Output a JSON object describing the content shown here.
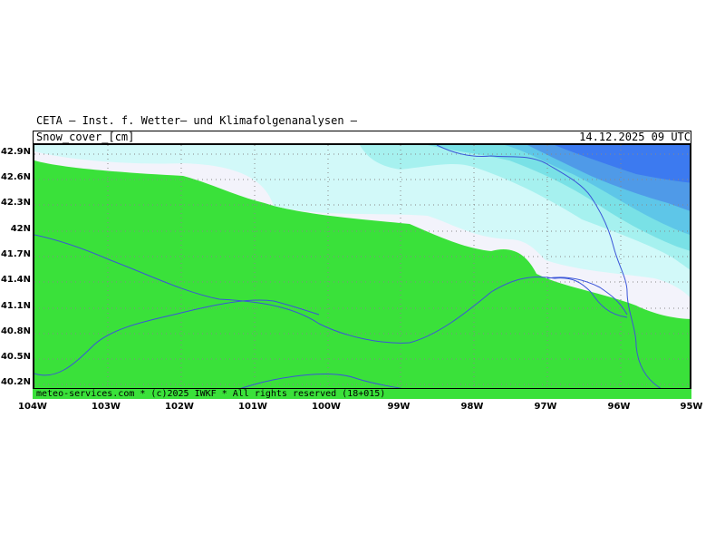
{
  "header": {
    "provider": "CETA — Inst. f. Wetter— und Klimafolgenanalysen —",
    "variable": "Snow_cover_[cm]",
    "valid_time": "14.12.2025 09 UTC"
  },
  "footer": {
    "copyright": "meteo-services.com * (c)2025 IWKF * All rights reserved (18+015)"
  },
  "map": {
    "lat_labels": [
      "42.9N",
      "42.6N",
      "42.3N",
      "42N",
      "41.7N",
      "41.4N",
      "41.1N",
      "40.8N",
      "40.5N",
      "40.2N"
    ],
    "lon_labels": [
      "104W",
      "103W",
      "102W",
      "101W",
      "100W",
      "99W",
      "98W",
      "97W",
      "96W",
      "95W"
    ],
    "colors": {
      "no_snow": "#3ae13a",
      "band1": "#f3f3fb",
      "band2": "#d2f9f9",
      "band3": "#a6f1ef",
      "band4": "#79e1e6",
      "band5": "#5ec6e8",
      "band6": "#4f9ae8",
      "band7": "#3c7af0",
      "rivers": "#3a55d8",
      "grid": "#888888"
    }
  }
}
